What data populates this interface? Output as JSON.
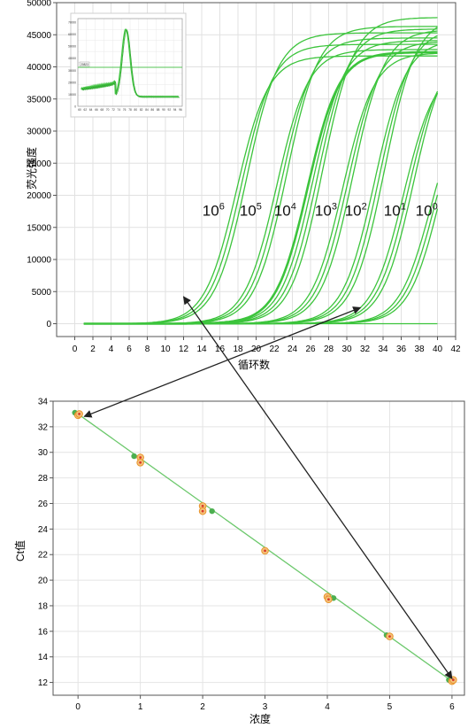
{
  "chart_data": [
    {
      "type": "line",
      "xlabel": "循环数",
      "ylabel": "荧光强度",
      "xlim": [
        -2,
        42
      ],
      "ylim": [
        -2000,
        50000
      ],
      "x_ticks": [
        0,
        2,
        4,
        6,
        8,
        10,
        12,
        14,
        16,
        18,
        20,
        22,
        24,
        26,
        28,
        30,
        32,
        34,
        36,
        38,
        40,
        42
      ],
      "y_ticks": [
        0,
        5000,
        10000,
        15000,
        20000,
        25000,
        30000,
        35000,
        40000,
        45000,
        50000
      ],
      "grid": true,
      "line_color": "#3cc43c",
      "series": [
        {
          "label_base": "10",
          "label_exp": "6",
          "label_x": 15.3,
          "ct": 14.2,
          "plateau": 43500,
          "replicates": 3
        },
        {
          "label_base": "10",
          "label_exp": "5",
          "label_x": 19.4,
          "ct": 18.6,
          "plateau": 44500,
          "replicates": 3
        },
        {
          "label_base": "10",
          "label_exp": "4",
          "label_x": 23.2,
          "ct": 22.3,
          "plateau": 45000,
          "replicates": 4
        },
        {
          "label_base": "10",
          "label_exp": "3",
          "label_x": 27.7,
          "ct": 25.9,
          "plateau": 44000,
          "replicates": 3
        },
        {
          "label_base": "10",
          "label_exp": "2",
          "label_x": 31.0,
          "ct": 29.4,
          "plateau": 46000,
          "replicates": 3
        },
        {
          "label_base": "10",
          "label_exp": "1",
          "label_x": 35.3,
          "ct": 32.6,
          "plateau": 42000,
          "replicates": 3
        },
        {
          "label_base": "10",
          "label_exp": "0",
          "label_x": 38.8,
          "ct": 35.6,
          "plateau": 38000,
          "replicates": 3
        }
      ],
      "inset": {
        "description_value": "melt-curve",
        "threshold_label": "20823",
        "y_ticks": [
          "70000",
          "60000",
          "50000",
          "40000",
          "30000",
          "20000",
          "10000",
          "0"
        ],
        "x_ticks": [
          "60",
          "62",
          "64",
          "66",
          "68",
          "70",
          "72",
          "74",
          "76",
          "78",
          "80",
          "82",
          "84",
          "86",
          "88",
          "90",
          "92",
          "94",
          "96"
        ]
      }
    },
    {
      "type": "scatter",
      "xlabel": "浓度",
      "ylabel": "Ct值",
      "xlim": [
        -0.4,
        6.2
      ],
      "ylim": [
        11,
        34
      ],
      "x_ticks": [
        0,
        1,
        2,
        3,
        4,
        5,
        6
      ],
      "y_ticks": [
        12,
        14,
        16,
        18,
        20,
        22,
        24,
        26,
        28,
        30,
        32,
        34
      ],
      "grid": true,
      "fit_line": {
        "x": [
          0,
          6
        ],
        "y": [
          33.0,
          12.1
        ],
        "color": "#6cc86c"
      },
      "points_green": [
        {
          "x": -0.05,
          "y": 33.1
        },
        {
          "x": 0.9,
          "y": 29.7
        },
        {
          "x": 2.15,
          "y": 25.4
        },
        {
          "x": 4.1,
          "y": 18.6
        },
        {
          "x": 4.95,
          "y": 15.7
        },
        {
          "x": 5.95,
          "y": 12.2
        }
      ],
      "points_orange": [
        {
          "x": 0.0,
          "y": 32.9
        },
        {
          "x": 0.02,
          "y": 33.0
        },
        {
          "x": 1.0,
          "y": 29.6
        },
        {
          "x": 1.0,
          "y": 29.2
        },
        {
          "x": 2.0,
          "y": 25.8
        },
        {
          "x": 2.0,
          "y": 25.4
        },
        {
          "x": 3.0,
          "y": 22.3
        },
        {
          "x": 4.0,
          "y": 18.7
        },
        {
          "x": 4.02,
          "y": 18.5
        },
        {
          "x": 5.0,
          "y": 15.6
        },
        {
          "x": 6.0,
          "y": 12.1
        },
        {
          "x": 6.02,
          "y": 12.2
        }
      ]
    }
  ],
  "arrows": [
    {
      "from": {
        "chart": 0,
        "x": 31.5,
        "y": 2500
      },
      "to": {
        "chart": 1,
        "x": 0.1,
        "y": 32.8
      }
    },
    {
      "from": {
        "chart": 0,
        "x": 12.0,
        "y": 4200
      },
      "to": {
        "chart": 1,
        "x": 6.0,
        "y": 12.3
      }
    }
  ]
}
